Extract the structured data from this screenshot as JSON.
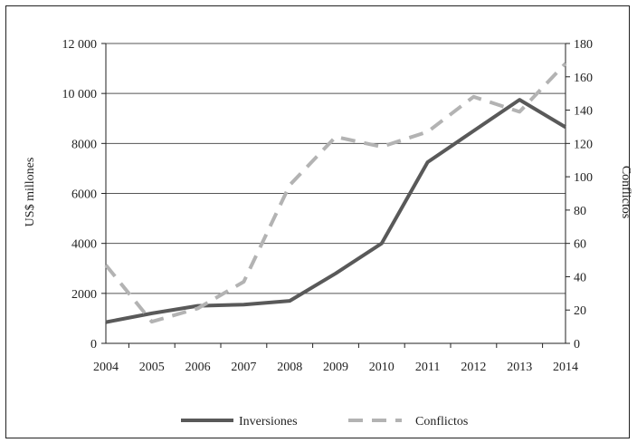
{
  "chart_data": {
    "type": "line",
    "title": "",
    "x": [
      2004,
      2005,
      2006,
      2007,
      2008,
      2009,
      2010,
      2011,
      2012,
      2013,
      2014
    ],
    "ylabel_left": "US$ millones",
    "ylabel_right": "Conflictos",
    "ylim_left": [
      0,
      12000
    ],
    "ylim_right": [
      0,
      180
    ],
    "yticks_left": [
      0,
      2000,
      4000,
      6000,
      8000,
      10000,
      12000
    ],
    "yticks_left_labels": [
      "0",
      "2000",
      "4000",
      "6000",
      "8000",
      "10 000",
      "12 000"
    ],
    "yticks_right": [
      0,
      20,
      40,
      60,
      80,
      100,
      120,
      140,
      160,
      180
    ],
    "grid": "horizontal",
    "legend_position": "bottom",
    "series": [
      {
        "name": "Inversiones",
        "axis": "left",
        "style": "solid",
        "color": "#595959",
        "values": [
          850,
          1200,
          1500,
          1550,
          1700,
          2800,
          4000,
          7250,
          8500,
          9750,
          8650
        ]
      },
      {
        "name": "Conflictos",
        "axis": "right",
        "style": "dashed",
        "color": "#b3b3b3",
        "values": [
          47,
          13,
          21,
          37,
          95,
          124,
          118,
          127,
          148,
          139,
          168
        ]
      }
    ]
  }
}
